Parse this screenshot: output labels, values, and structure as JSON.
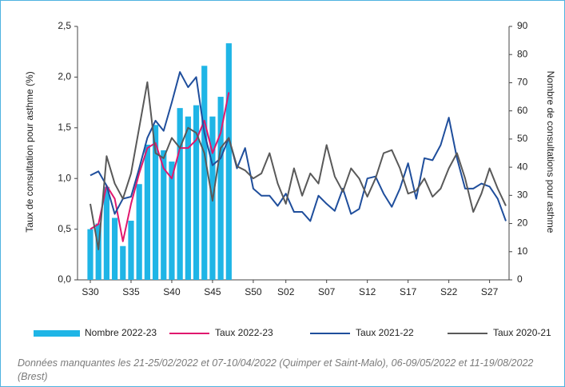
{
  "chart_data": {
    "type": "bar",
    "y_label": "Taux de consultation pour asthme (%)",
    "y2_label": "Nombre de consultations pour asthme",
    "note": "Données manquantes les 21-25/02/2022 et 07-10/04/2022 (Quimper et Saint-Malo), 06-09/05/2022 et 11-19/08/2022 (Brest)",
    "categories": [
      "S30",
      null,
      null,
      null,
      null,
      "S35",
      null,
      null,
      null,
      null,
      "S40",
      null,
      null,
      null,
      null,
      "S45",
      null,
      null,
      null,
      null,
      "S50",
      null,
      null,
      null,
      "S02",
      null,
      null,
      null,
      null,
      "S07",
      null,
      null,
      null,
      null,
      "S12",
      null,
      null,
      null,
      null,
      "S17",
      null,
      null,
      null,
      null,
      "S22",
      null,
      null,
      null,
      null,
      "S27",
      null,
      null
    ],
    "ylim": [
      0,
      2.5
    ],
    "yticks": [
      {
        "value": 0,
        "label": "0,0"
      },
      {
        "value": 0.5,
        "label": "0,5"
      },
      {
        "value": 1,
        "label": "1,0"
      },
      {
        "value": 1.5,
        "label": "1,5"
      },
      {
        "value": 2,
        "label": "2,0"
      },
      {
        "value": 2.5,
        "label": "2,5"
      }
    ],
    "y2lim": [
      0,
      90
    ],
    "y2ticks": [
      0,
      10,
      20,
      30,
      40,
      50,
      60,
      70,
      80,
      90
    ],
    "grid": false,
    "legend": "bottom",
    "series": [
      {
        "name": "Nombre 2022-23",
        "type": "bar",
        "axis": "y2",
        "color": "#1fb5e6",
        "values": [
          18,
          20,
          33,
          22,
          12,
          21,
          34,
          48,
          55,
          46,
          42,
          61,
          58,
          62,
          76,
          58,
          65,
          84,
          null,
          null,
          null,
          null,
          null,
          null,
          null,
          null,
          null,
          null,
          null,
          null,
          null,
          null,
          null,
          null,
          null,
          null,
          null,
          null,
          null,
          null,
          null,
          null,
          null,
          null,
          null,
          null,
          null,
          null,
          null,
          null,
          null,
          null
        ]
      },
      {
        "name": "Taux 2022-23",
        "type": "line",
        "color": "#e0186e",
        "values": [
          0.5,
          0.55,
          0.93,
          0.8,
          0.38,
          0.75,
          1.05,
          1.3,
          1.35,
          1.1,
          1.0,
          1.3,
          1.3,
          1.38,
          1.57,
          1.25,
          1.45,
          1.85,
          null,
          null,
          null,
          null,
          null,
          null,
          null,
          null,
          null,
          null,
          null,
          null,
          null,
          null,
          null,
          null,
          null,
          null,
          null,
          null,
          null,
          null,
          null,
          null,
          null,
          null,
          null,
          null,
          null,
          null,
          null,
          null,
          null,
          null
        ]
      },
      {
        "name": "Taux 2021-22",
        "type": "line",
        "color": "#1f4e9c",
        "values": [
          1.03,
          1.07,
          0.93,
          0.65,
          0.8,
          0.82,
          1.1,
          1.4,
          1.57,
          1.47,
          1.75,
          2.05,
          1.9,
          2.0,
          1.45,
          1.13,
          1.2,
          1.4,
          1.1,
          1.3,
          0.9,
          0.83,
          0.83,
          0.73,
          0.85,
          0.67,
          0.67,
          0.58,
          0.83,
          0.75,
          0.68,
          0.9,
          0.65,
          0.7,
          1.0,
          1.02,
          0.85,
          0.72,
          0.9,
          1.15,
          0.8,
          1.2,
          1.18,
          1.33,
          1.6,
          1.2,
          0.9,
          0.9,
          0.95,
          0.92,
          0.8,
          0.58
        ]
      },
      {
        "name": "Taux 2020-21",
        "type": "line",
        "color": "#595959",
        "values": [
          0.75,
          0.3,
          1.22,
          0.95,
          0.8,
          1.05,
          1.5,
          1.95,
          1.25,
          1.2,
          1.4,
          1.3,
          1.5,
          1.45,
          1.25,
          0.78,
          1.3,
          1.4,
          1.12,
          1.08,
          1.0,
          1.05,
          1.25,
          0.95,
          0.75,
          1.1,
          0.83,
          1.05,
          0.95,
          1.33,
          1.02,
          0.87,
          1.1,
          1.0,
          0.82,
          1.0,
          1.25,
          1.28,
          1.1,
          0.85,
          0.88,
          1.0,
          0.82,
          0.9,
          1.1,
          1.25,
          1.0,
          0.67,
          0.85,
          1.1,
          0.9,
          0.73
        ]
      }
    ]
  }
}
